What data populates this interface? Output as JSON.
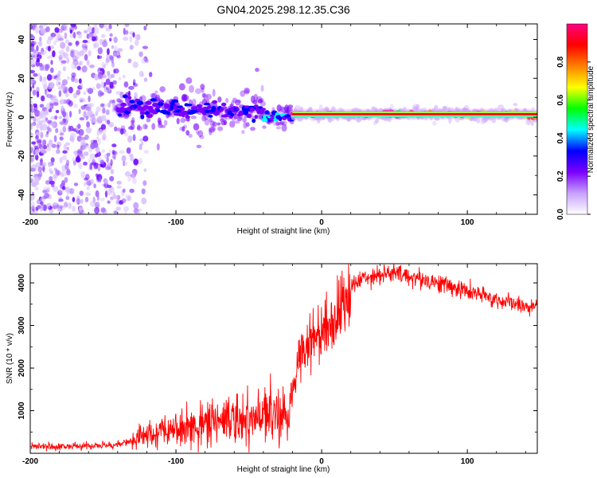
{
  "title": "GN04.2025.298.12.35.C36",
  "chart_data": [
    {
      "type": "heatmap",
      "name": "spectrogram",
      "xlabel": "Height of straight line (km)",
      "ylabel": "Frequency (Hz)",
      "xlim": [
        -200,
        148
      ],
      "ylim": [
        -50,
        48
      ],
      "xticks": [
        -200,
        -100,
        0,
        100
      ],
      "yticks": [
        -40,
        -20,
        0,
        20,
        40
      ],
      "colorbar": {
        "label": "Normalized spectral amplitude",
        "range": [
          0,
          1
        ],
        "ticks": [
          "0.0",
          "0.2",
          "0.4",
          "0.6",
          "0.8"
        ],
        "colors": [
          "#ffffff",
          "#c8a0ff",
          "#7a00ff",
          "#0000ff",
          "#00ffff",
          "#00ff00",
          "#ffff00",
          "#ff8000",
          "#ff0000",
          "#ff0080"
        ]
      },
      "band": {
        "segments": [
          {
            "x": [
              -140,
              -100
            ],
            "center_freq": 5,
            "spread": 6,
            "amplitude": 0.3
          },
          {
            "x": [
              -100,
              -40
            ],
            "center_freq": 3,
            "spread": 6,
            "amplitude": 0.3
          },
          {
            "x": [
              -40,
              -20
            ],
            "center_freq": 0,
            "spread": 3,
            "amplitude": 0.4
          },
          {
            "x": [
              -20,
              140
            ],
            "center_freq": 1.5,
            "spread": 1.5,
            "amplitude": 0.9
          },
          {
            "x": [
              140,
              148
            ],
            "center_freq": 0,
            "spread": 1.5,
            "amplitude": 0.8
          }
        ],
        "noise_region": [
          -200,
          -120
        ]
      }
    },
    {
      "type": "line",
      "name": "snr",
      "xlabel": "Height of straight line (km)",
      "ylabel": "SNR (10 * v/v)",
      "xlim": [
        -200,
        148
      ],
      "ylim": [
        0,
        4450
      ],
      "xticks": [
        -200,
        -100,
        0,
        100
      ],
      "yticks": [
        1000,
        2000,
        3000,
        4000
      ],
      "color": "#ff0000",
      "series": [
        {
          "name": "SNR",
          "x": [
            -200,
            -180,
            -160,
            -140,
            -130,
            -120,
            -100,
            -80,
            -60,
            -40,
            -22,
            -19,
            -15,
            -10,
            0,
            10,
            20,
            30,
            40,
            50,
            60,
            80,
            100,
            120,
            140,
            148
          ],
          "y": [
            150,
            160,
            170,
            200,
            300,
            350,
            500,
            650,
            750,
            800,
            900,
            1700,
            2300,
            2600,
            2900,
            3200,
            3900,
            4150,
            4200,
            4220,
            4150,
            4000,
            3800,
            3600,
            3450,
            3400
          ]
        }
      ]
    }
  ]
}
